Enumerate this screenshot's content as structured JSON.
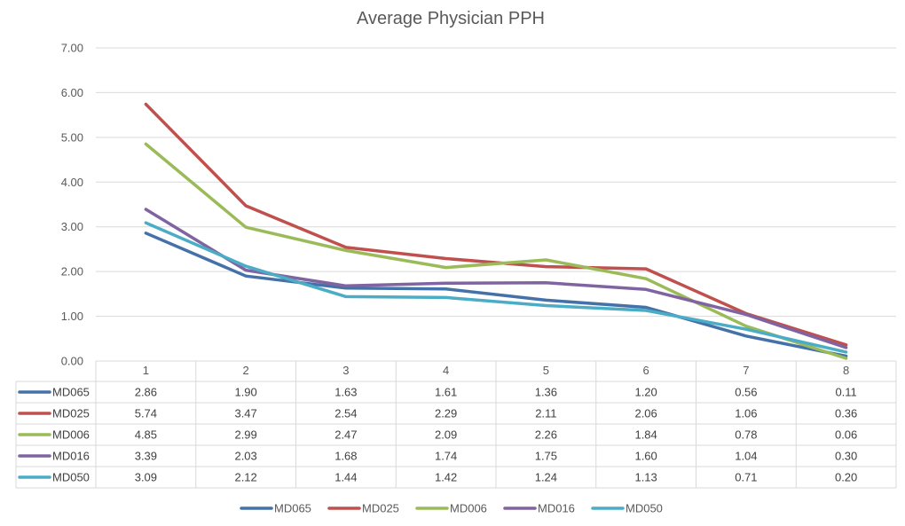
{
  "chart_data": {
    "type": "line",
    "title": "Average Physician PPH",
    "categories": [
      "1",
      "2",
      "3",
      "4",
      "5",
      "6",
      "7",
      "8"
    ],
    "ylim": [
      0,
      7
    ],
    "yticks": [
      "0.00",
      "1.00",
      "2.00",
      "3.00",
      "4.00",
      "5.00",
      "6.00",
      "7.00"
    ],
    "grid": true,
    "legend": "bottom",
    "data_table": true,
    "series": [
      {
        "name": "MD065",
        "color": "#4472a8",
        "values": [
          2.86,
          1.9,
          1.63,
          1.61,
          1.36,
          1.2,
          0.56,
          0.11
        ],
        "labels": [
          "2.86",
          "1.90",
          "1.63",
          "1.61",
          "1.36",
          "1.20",
          "0.56",
          "0.11"
        ]
      },
      {
        "name": "MD025",
        "color": "#c0504d",
        "values": [
          5.74,
          3.47,
          2.54,
          2.29,
          2.11,
          2.06,
          1.06,
          0.36
        ],
        "labels": [
          "5.74",
          "3.47",
          "2.54",
          "2.29",
          "2.11",
          "2.06",
          "1.06",
          "0.36"
        ]
      },
      {
        "name": "MD006",
        "color": "#9bbb59",
        "values": [
          4.85,
          2.99,
          2.47,
          2.09,
          2.26,
          1.84,
          0.78,
          0.06
        ],
        "labels": [
          "4.85",
          "2.99",
          "2.47",
          "2.09",
          "2.26",
          "1.84",
          "0.78",
          "0.06"
        ]
      },
      {
        "name": "MD016",
        "color": "#8064a2",
        "values": [
          3.39,
          2.03,
          1.68,
          1.74,
          1.75,
          1.6,
          1.04,
          0.3
        ],
        "labels": [
          "3.39",
          "2.03",
          "1.68",
          "1.74",
          "1.75",
          "1.60",
          "1.04",
          "0.30"
        ]
      },
      {
        "name": "MD050",
        "color": "#4bacc6",
        "values": [
          3.09,
          2.12,
          1.44,
          1.42,
          1.24,
          1.13,
          0.71,
          0.2
        ],
        "labels": [
          "3.09",
          "2.12",
          "1.44",
          "1.42",
          "1.24",
          "1.13",
          "0.71",
          "0.20"
        ]
      }
    ]
  }
}
